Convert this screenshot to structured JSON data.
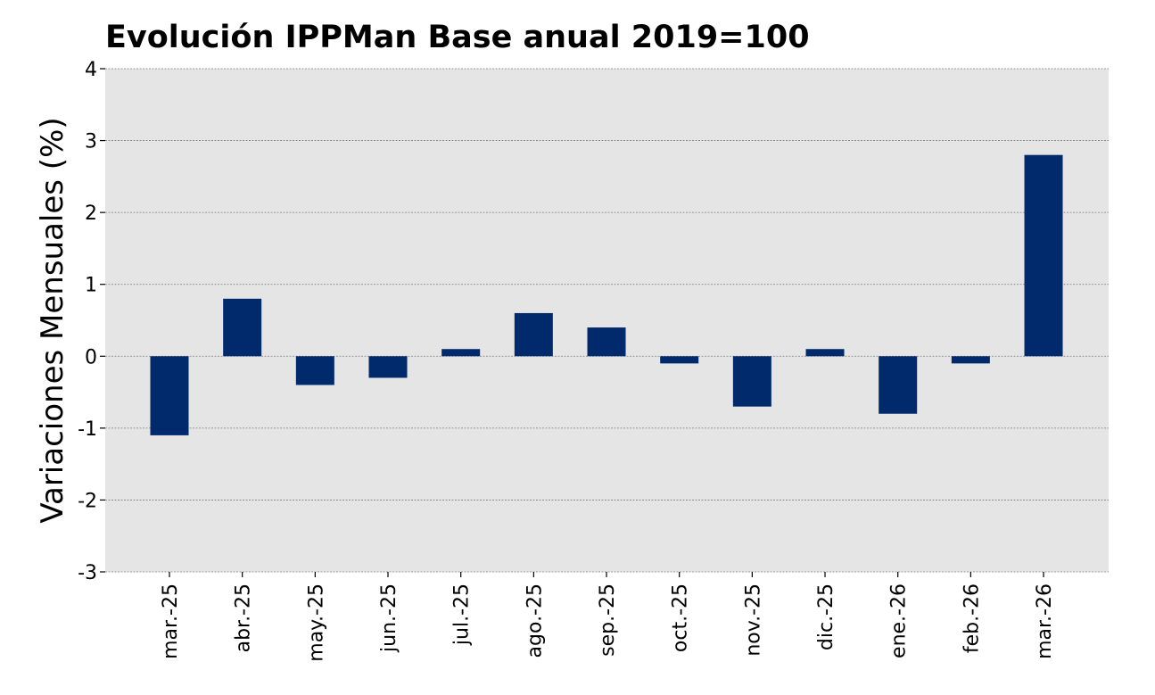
{
  "chart_data": {
    "type": "bar",
    "title": "Evolución IPPMan Base anual 2019=100",
    "xlabel": "",
    "ylabel": "Variaciones Mensuales (%)",
    "categories": [
      "mar.-25",
      "abr.-25",
      "may.-25",
      "jun.-25",
      "jul.-25",
      "ago.-25",
      "sep.-25",
      "oct.-25",
      "nov.-25",
      "dic.-25",
      "ene.-26",
      "feb.-26",
      "mar.-26"
    ],
    "values": [
      -1.1,
      0.8,
      -0.4,
      -0.3,
      0.1,
      0.6,
      0.4,
      -0.1,
      -0.7,
      0.1,
      -0.8,
      -0.1,
      2.8
    ],
    "ylim": [
      -3,
      4
    ],
    "yticks": [
      "-3",
      "-2",
      "-1",
      "0",
      "1",
      "2",
      "3",
      "4"
    ],
    "grid": true,
    "colors": {
      "bar": "#002a6c",
      "plot_background": "#e5e5e5"
    }
  }
}
